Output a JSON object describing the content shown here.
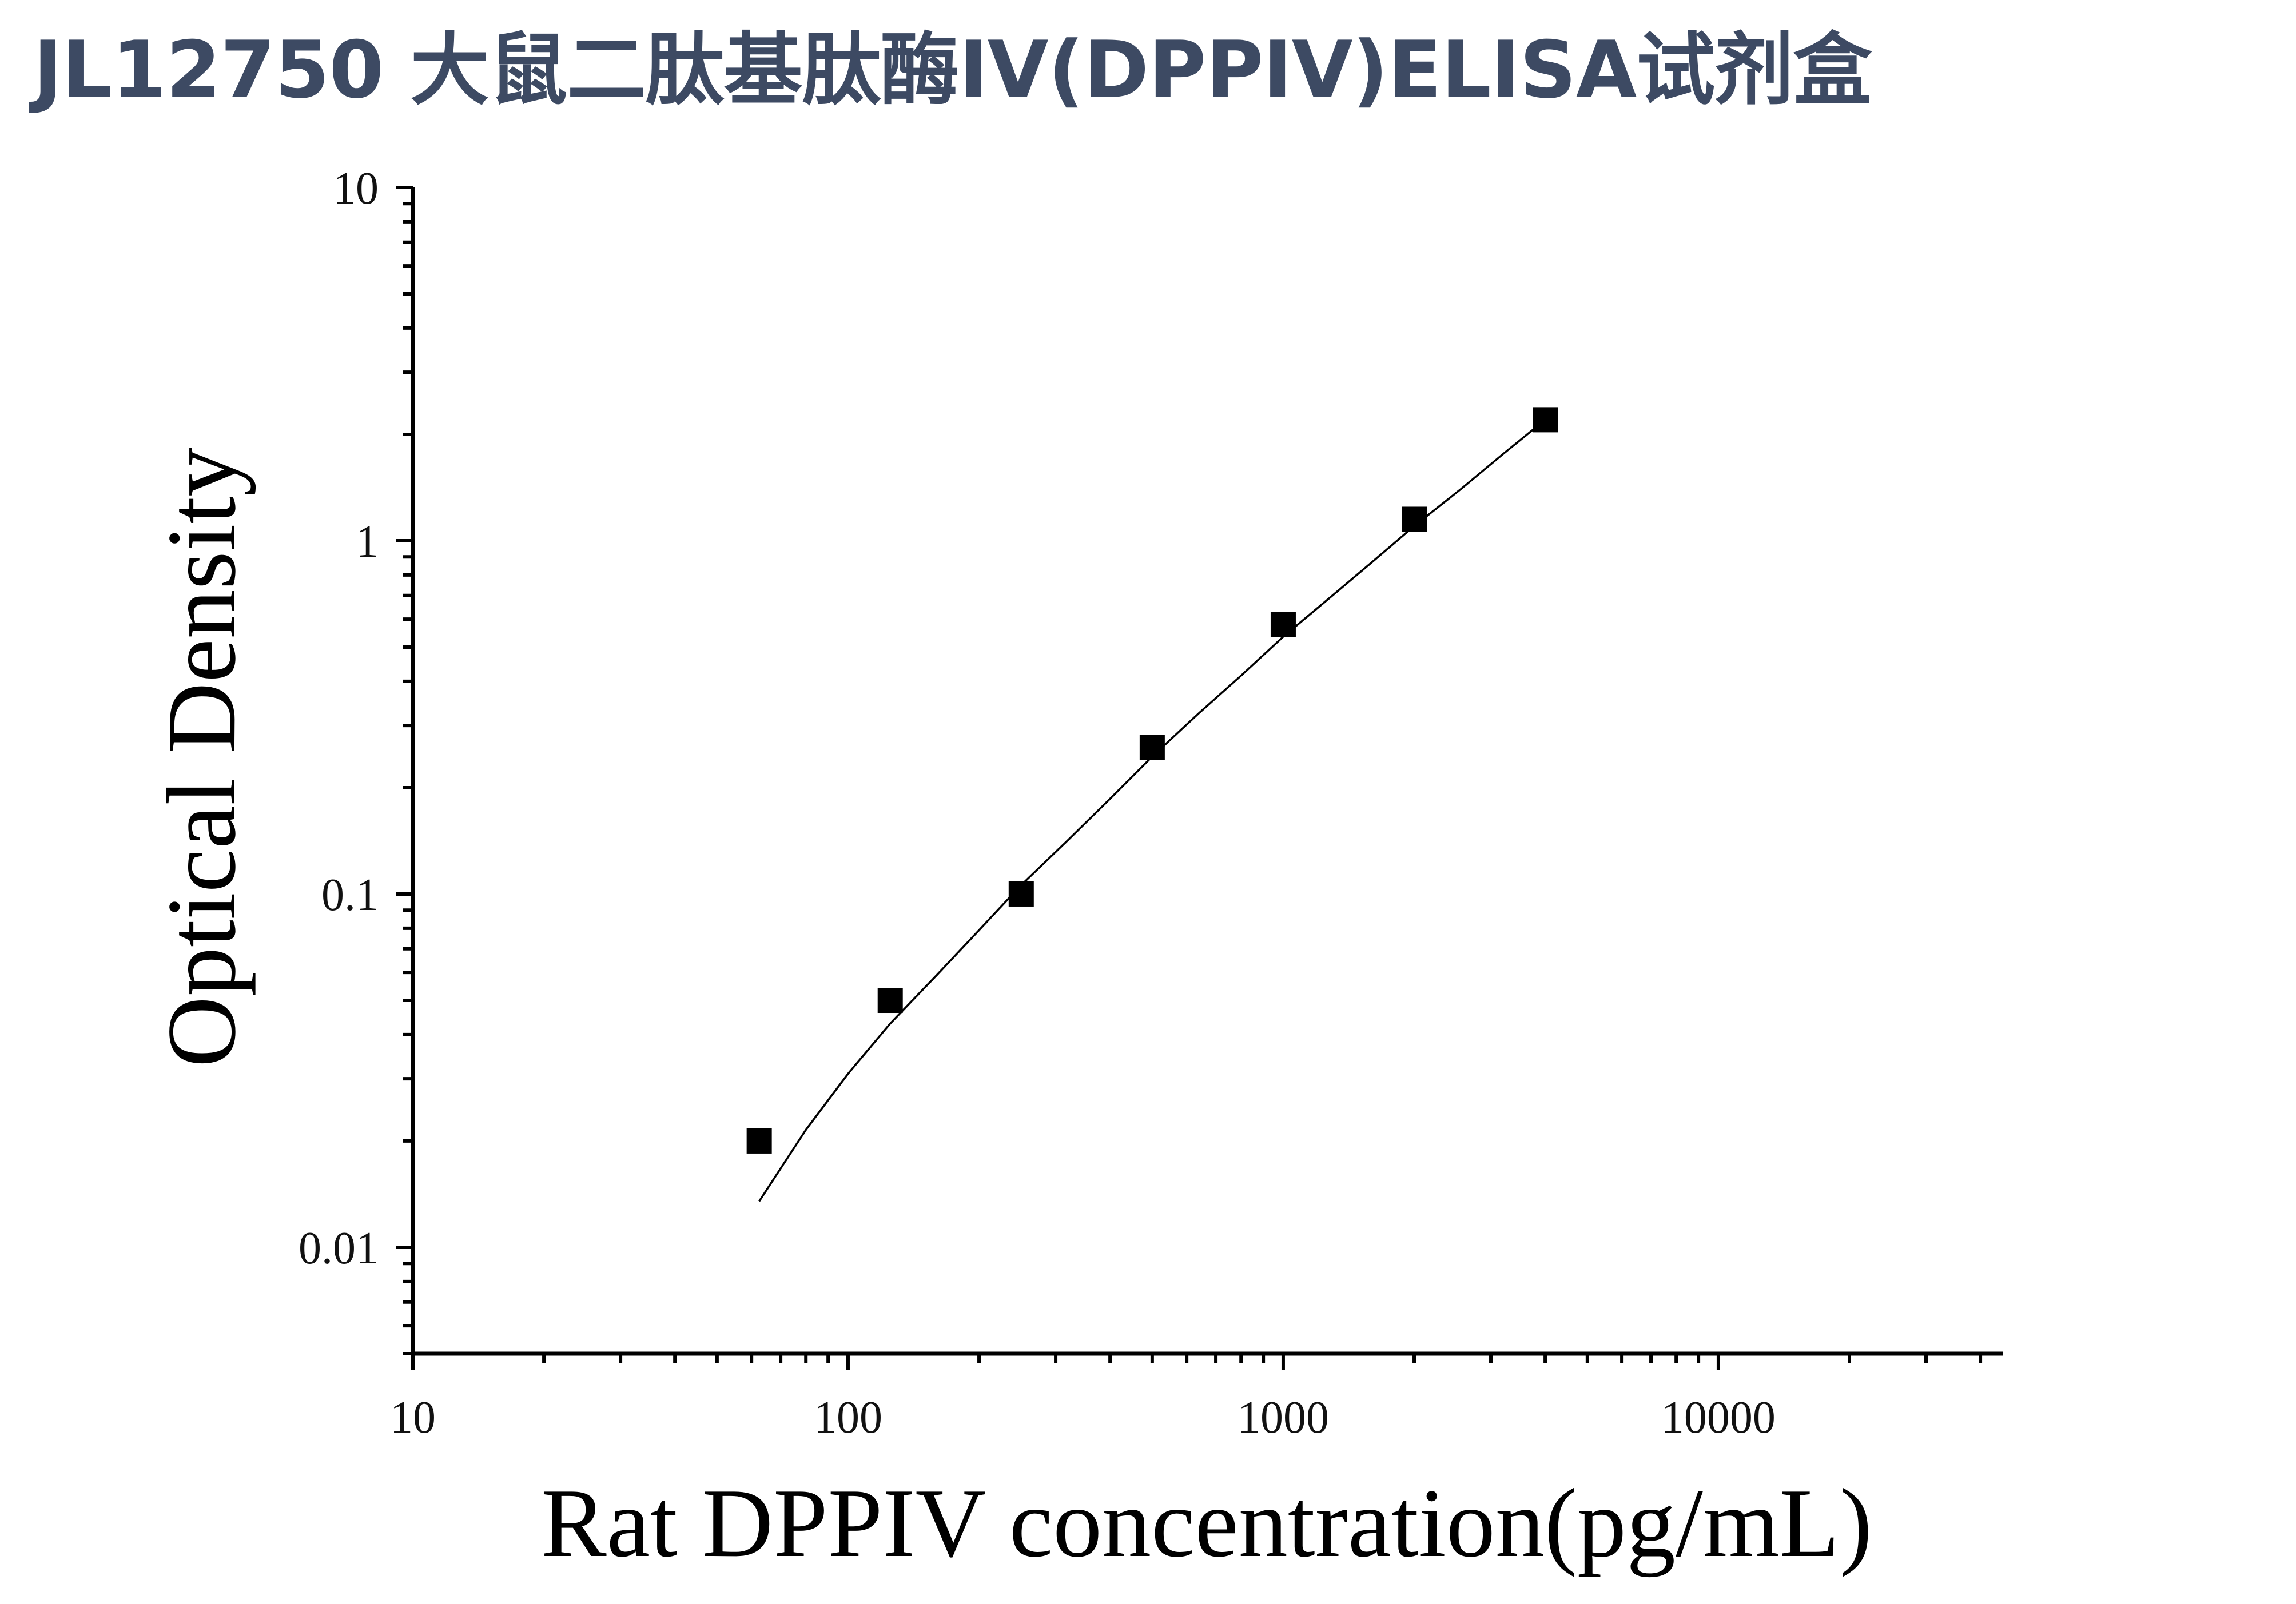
{
  "title": "JL12750 大鼠二肽基肽酶IV(DPPIV)ELISA试剂盒",
  "chart_data": {
    "type": "scatter",
    "title": "JL12750 大鼠二肽基肽酶IV(DPPIV)ELISA试剂盒",
    "xlabel": "Rat DPPIV concentration(pg/mL)",
    "ylabel": "Optical Density",
    "x_scale": "log",
    "y_scale": "log",
    "xlim": [
      10,
      45000
    ],
    "ylim": [
      0.005,
      10
    ],
    "x_ticks": [
      10,
      100,
      1000,
      10000
    ],
    "x_tick_labels": [
      "10",
      "100",
      "1000",
      "10000"
    ],
    "y_ticks": [
      0.01,
      0.1,
      1,
      10
    ],
    "y_tick_labels": [
      "0.01",
      "0.1",
      "1",
      "10"
    ],
    "grid": false,
    "series": [
      {
        "marker": "square",
        "color": "#000000",
        "x": [
          62.5,
          125,
          250,
          500,
          1000,
          2000,
          4000
        ],
        "y": [
          0.02,
          0.05,
          0.1,
          0.26,
          0.58,
          1.15,
          2.2
        ]
      }
    ],
    "fit_curve": {
      "color": "#000000",
      "x": [
        62.5,
        80,
        100,
        125,
        160,
        200,
        250,
        320,
        400,
        500,
        640,
        800,
        1000,
        1280,
        1600,
        2000,
        2560,
        3200,
        4000
      ],
      "y": [
        0.0135,
        0.0215,
        0.031,
        0.043,
        0.059,
        0.079,
        0.106,
        0.142,
        0.186,
        0.245,
        0.325,
        0.415,
        0.535,
        0.69,
        0.87,
        1.1,
        1.4,
        1.76,
        2.2
      ]
    }
  }
}
